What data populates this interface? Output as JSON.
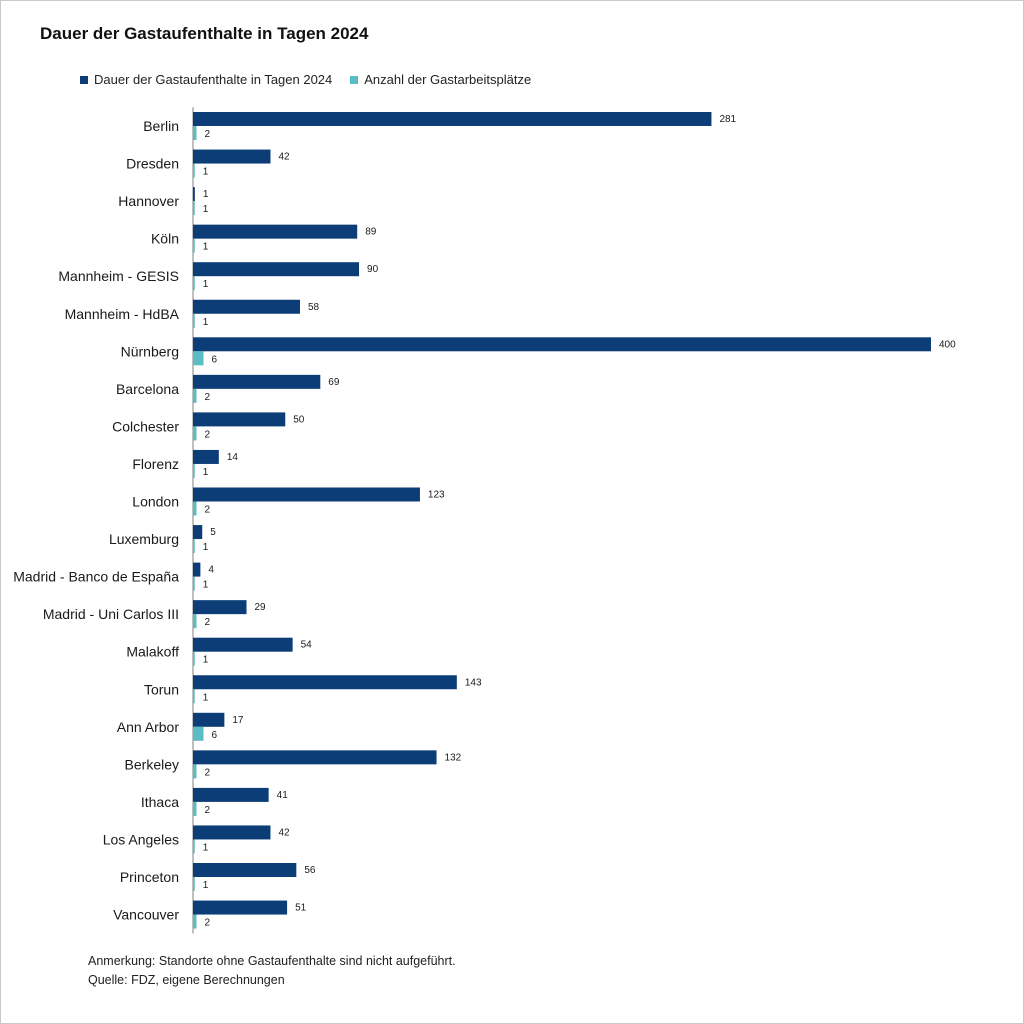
{
  "colors": {
    "series1": "#0c3d77",
    "series2": "#5bbdc4",
    "axis": "#808080"
  },
  "chart_data": {
    "type": "bar",
    "orientation": "horizontal",
    "title": "Dauer der Gastaufenthalte  in Tagen 2024",
    "legend_position": "top-left",
    "grid": false,
    "xlim": [
      0,
      400
    ],
    "categories": [
      "Berlin",
      "Dresden",
      "Hannover",
      "Köln",
      "Mannheim - GESIS",
      "Mannheim - HdBA",
      "Nürnberg",
      "Barcelona",
      "Colchester",
      "Florenz",
      "London",
      "Luxemburg",
      "Madrid - Banco de España",
      "Madrid - Uni Carlos III",
      "Malakoff",
      "Torun",
      "Ann Arbor",
      "Berkeley",
      "Ithaca",
      "Los Angeles",
      "Princeton",
      "Vancouver"
    ],
    "series": [
      {
        "name": "Dauer der Gastaufenthalte in Tagen 2024",
        "values": [
          281,
          42,
          1,
          89,
          90,
          58,
          400,
          69,
          50,
          14,
          123,
          5,
          4,
          29,
          54,
          143,
          17,
          132,
          41,
          42,
          56,
          51
        ]
      },
      {
        "name": "Anzahl der Gastarbeitsplätze",
        "values": [
          2,
          1,
          1,
          1,
          1,
          1,
          6,
          2,
          2,
          1,
          2,
          1,
          1,
          2,
          1,
          1,
          6,
          2,
          2,
          1,
          1,
          2
        ]
      }
    ]
  },
  "notes": {
    "remark": "Anmerkung: Standorte ohne Gastaufenthalte sind nicht aufgeführt.",
    "source": "Quelle: FDZ, eigene Berechnungen"
  }
}
